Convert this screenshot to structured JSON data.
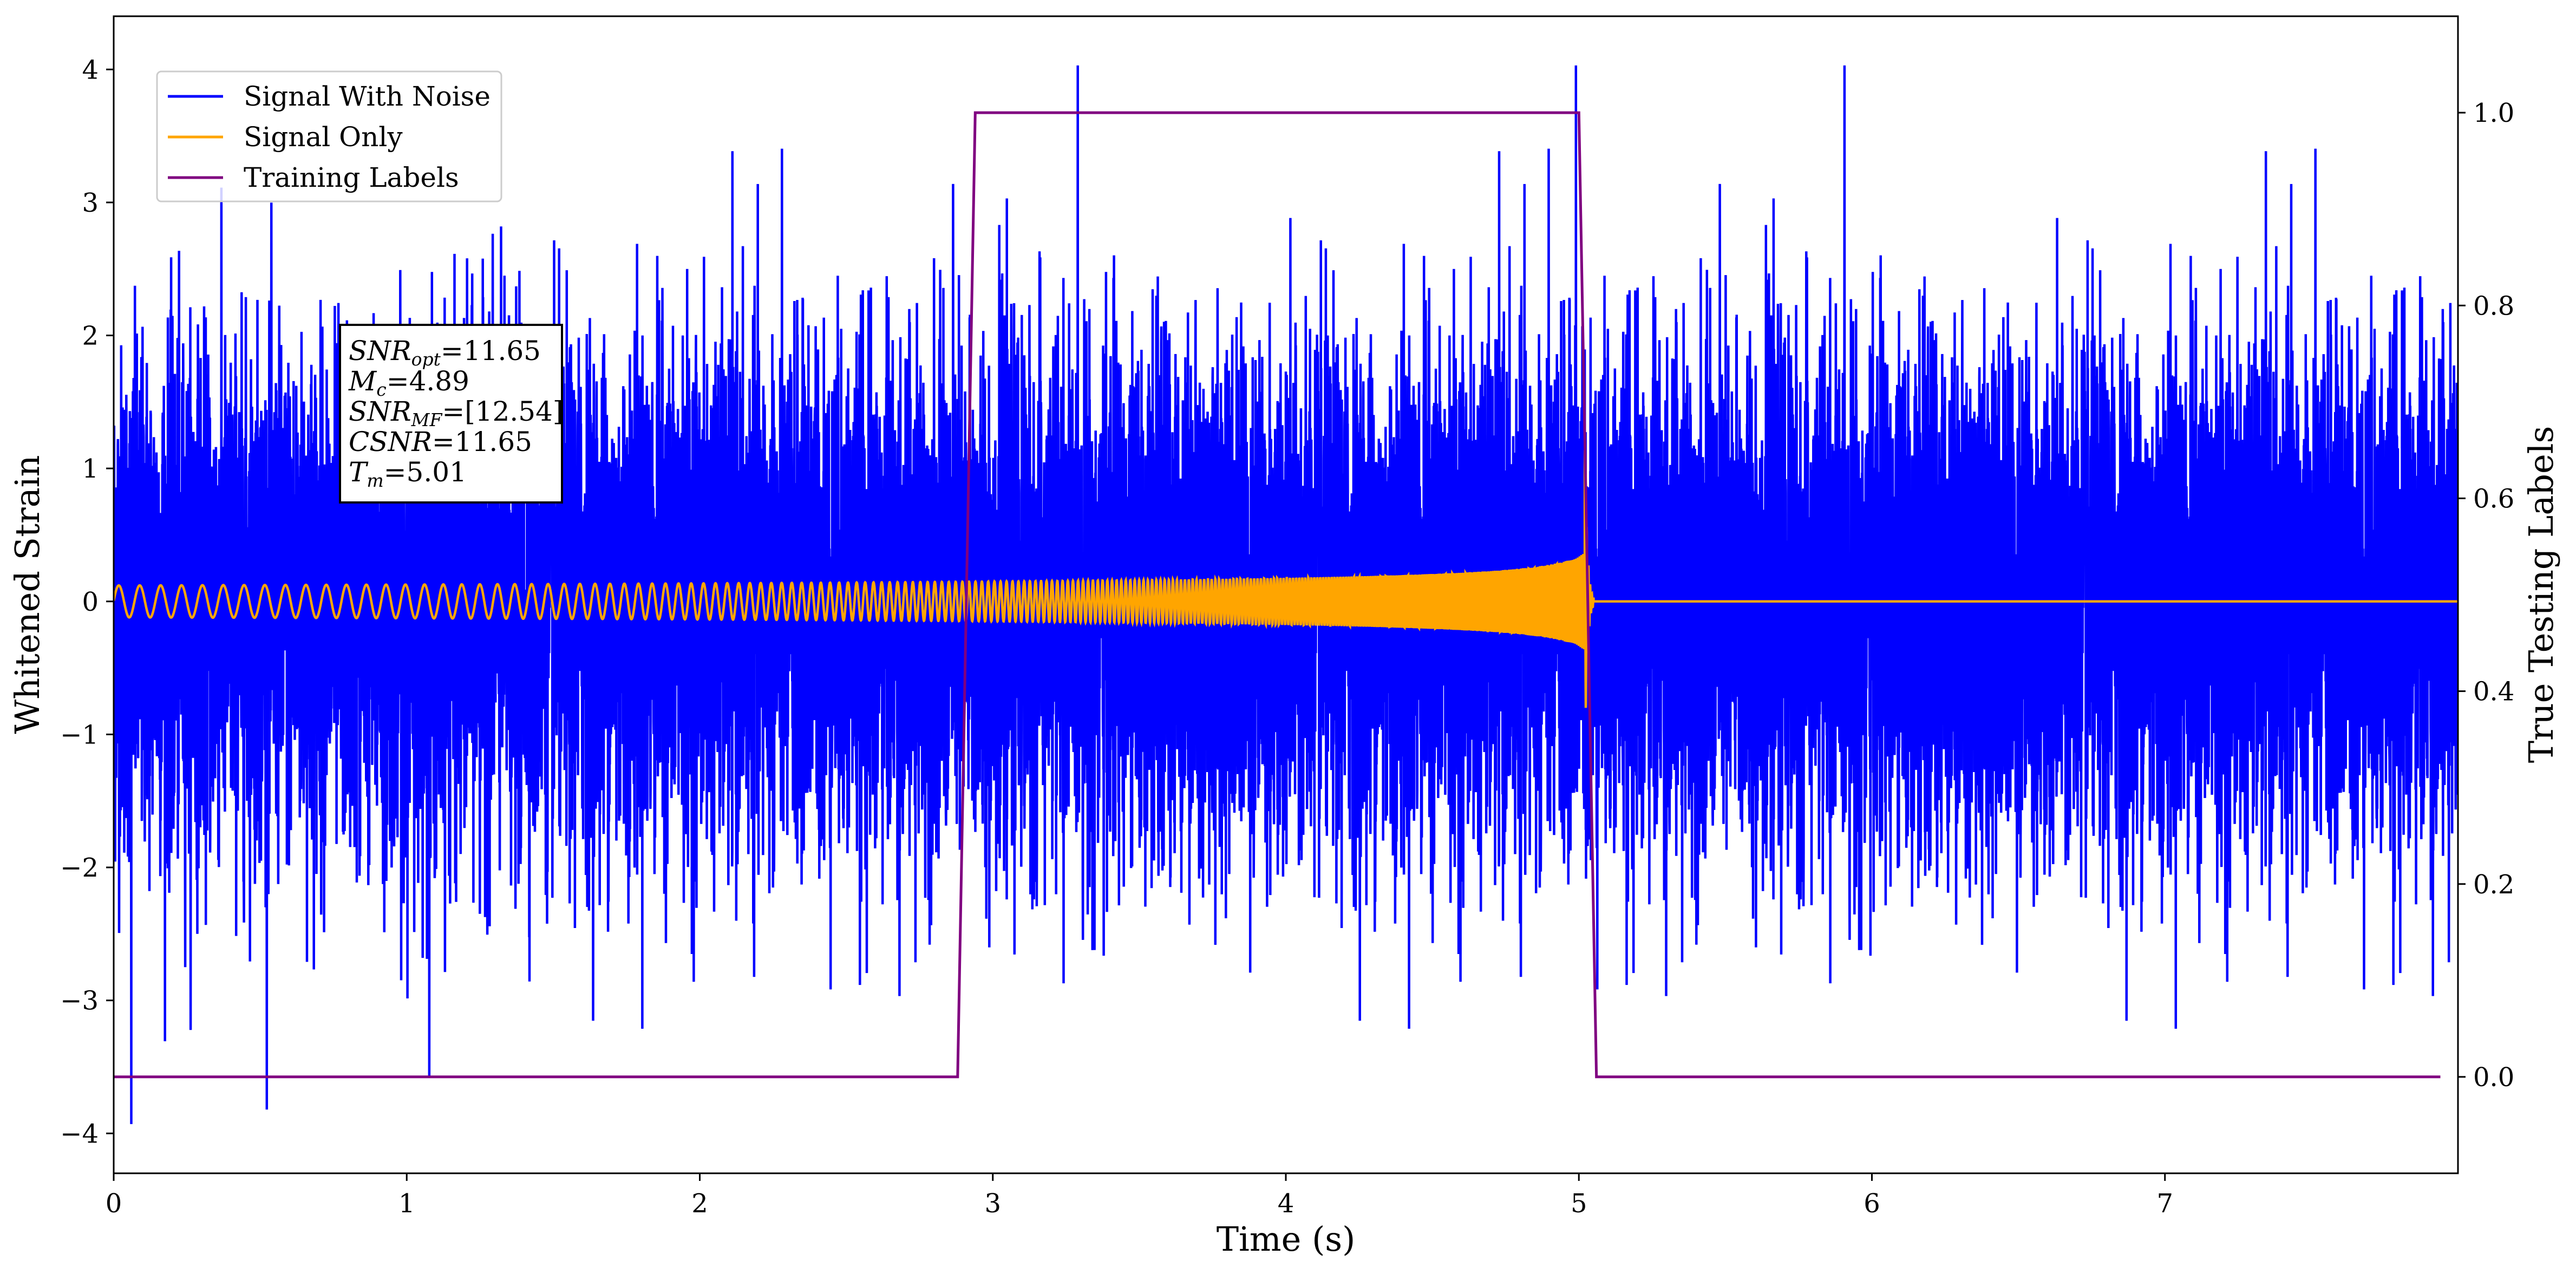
{
  "chart_data": {
    "type": "line",
    "title": "",
    "xlabel": "Time (s)",
    "ylabel": "Whitened Strain",
    "y2label": "True Testing Labels",
    "xlim": [
      0,
      8.0
    ],
    "ylim": [
      -4.3,
      4.4
    ],
    "y2lim": [
      -0.1,
      1.1
    ],
    "grid": false,
    "legend_position": "top-left",
    "x_ticks": [
      "0",
      "1",
      "2",
      "3",
      "4",
      "5",
      "6",
      "7"
    ],
    "y_ticks": [
      "4",
      "3",
      "2",
      "1",
      "0",
      "−1",
      "−2",
      "−3",
      "−4"
    ],
    "y2_ticks": [
      "1.0",
      "0.8",
      "0.6",
      "0.4",
      "0.2",
      "0.0"
    ],
    "series": [
      {
        "name": "Signal With Noise",
        "color": "#0000ff",
        "axis": "left",
        "description_values": {
          "noise_std": 0.95,
          "min": -3.93,
          "max": 4.03,
          "min_at": 0.06,
          "max_at": 4.99
        }
      },
      {
        "name": "Signal Only",
        "color": "#ffa500",
        "axis": "left",
        "chirp": {
          "start": 0.0,
          "merger": 5.02,
          "start_amplitude": 0.12,
          "peak_amplitude": 1.3,
          "start_frequency_hz": 14,
          "end_frequency_hz": 170
        }
      },
      {
        "name": "Training Labels",
        "color": "#800080",
        "axis": "right",
        "x": [
          0.0,
          2.88,
          2.94,
          5.0,
          5.06,
          7.94
        ],
        "y": [
          0.0,
          0.0,
          1.0,
          1.0,
          0.0,
          0.0
        ]
      }
    ],
    "annotation": {
      "lines": [
        {
          "base": "SNR",
          "sub": "opt",
          "value": "=11.65"
        },
        {
          "base": "M",
          "sub": "c",
          "value": "=4.89"
        },
        {
          "base": "SNR",
          "sub": "MF",
          "value": "=[12.54]"
        },
        {
          "base": "CSNR",
          "sub": "",
          "value": "=11.65"
        },
        {
          "base": "T",
          "sub": "m",
          "value": "=5.01"
        }
      ]
    }
  }
}
